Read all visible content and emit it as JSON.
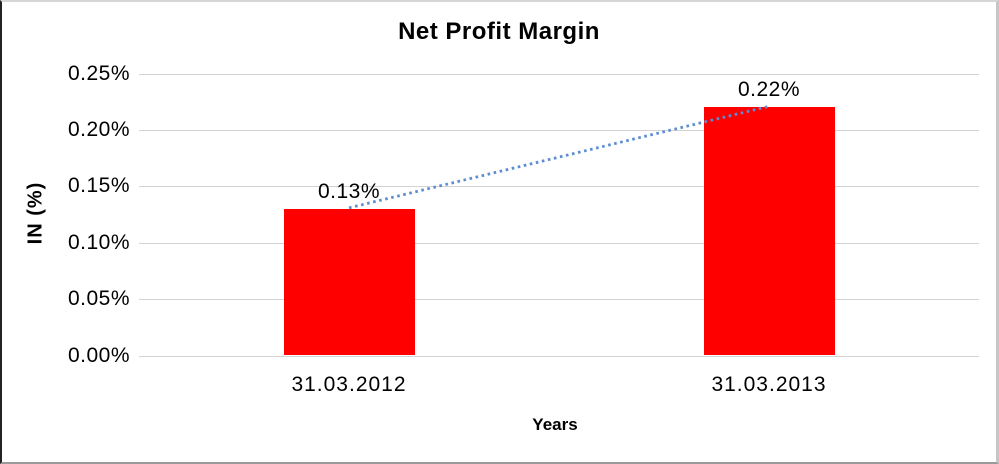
{
  "chart_data": {
    "type": "bar",
    "title": "Net Profit Margin",
    "xlabel": "Years",
    "ylabel": "IN (%)",
    "categories": [
      "31.03.2012",
      "31.03.2013"
    ],
    "series": [
      {
        "name": "Net Profit Margin",
        "values": [
          0.13,
          0.22
        ]
      }
    ],
    "values": [
      0.13,
      0.22
    ],
    "value_labels": [
      "0.13%",
      "0.22%"
    ],
    "yticks": [
      "0.25%",
      "0.20%",
      "0.15%",
      "0.10%",
      "0.05%",
      "0.00%"
    ],
    "ylim": [
      0,
      0.25
    ],
    "ytick_step": 0.05,
    "grid": true,
    "legend": "none",
    "colors": {
      "bar": "#ff0000",
      "trendline": "#5b8dd0",
      "gridline": "#d3d3d3",
      "text": "#000000",
      "background": "#ffffff"
    },
    "trendline": {
      "type": "linear",
      "style": "dotted",
      "from_category": "31.03.2012",
      "to_category": "31.03.2013"
    }
  }
}
